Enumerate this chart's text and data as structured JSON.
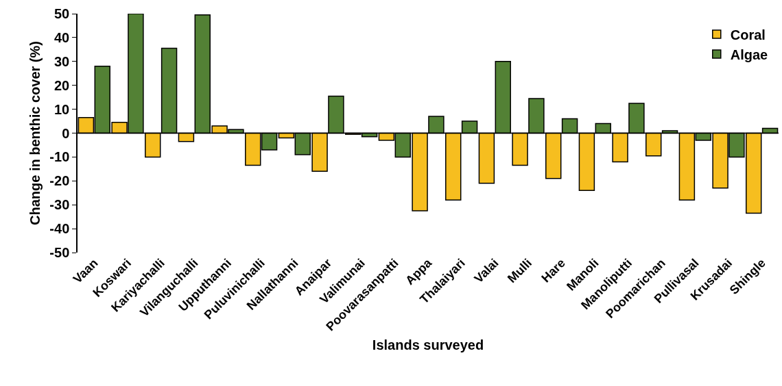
{
  "chart_data": {
    "type": "bar",
    "xlabel": "Islands surveyed",
    "ylabel": "Change in benthic cover (%)",
    "categories": [
      "Vaan",
      "Koswari",
      "Kariyachalli",
      "Vilanguchalli",
      "Upputhanni",
      "Puluvinichalli",
      "Nallathanni",
      "Anaipar",
      "Valimunai",
      "Poovarasanpatti",
      "Appa",
      "Thalaiyari",
      "Valai",
      "Mulli",
      "Hare",
      "Manoli",
      "Manoliputti",
      "Poomarichan",
      "Pullivasal",
      "Krusadai",
      "Shingle"
    ],
    "series": [
      {
        "name": "Coral",
        "color": "#f6be1f",
        "values": [
          6.5,
          4.5,
          -10,
          -3.5,
          3,
          -13.5,
          -2,
          -16,
          -0.5,
          -3,
          -32.5,
          -28,
          -21,
          -13.5,
          -19,
          -24,
          -12,
          -9.5,
          -28,
          -23,
          -33.5
        ]
      },
      {
        "name": "Algae",
        "color": "#538135",
        "values": [
          28,
          50,
          35.5,
          49.5,
          1.5,
          -7,
          -9,
          15.5,
          -1.5,
          -10,
          7,
          5,
          30,
          14.5,
          6,
          4,
          12.5,
          1,
          -3,
          -10,
          2
        ]
      }
    ],
    "ylim": [
      -50,
      50
    ],
    "yticks": [
      -50,
      -40,
      -30,
      -20,
      -10,
      0,
      10,
      20,
      30,
      40,
      50
    ],
    "legend": "top right"
  }
}
